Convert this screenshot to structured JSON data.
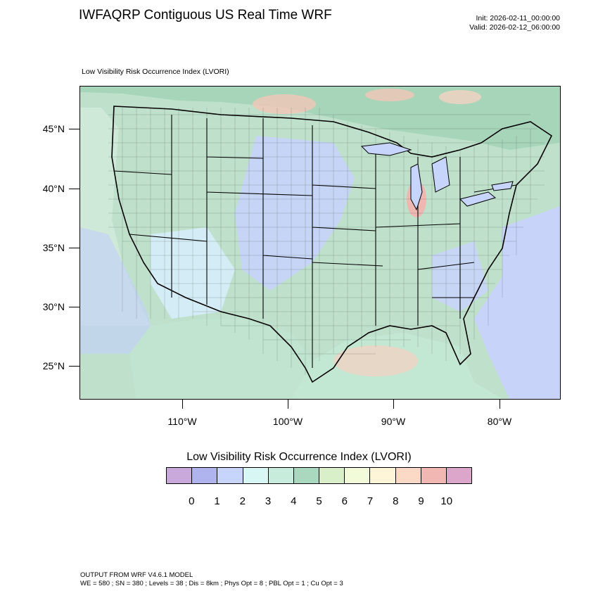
{
  "header": {
    "title": "IWFAQRP Contiguous US Real Time WRF",
    "init": "Init: 2026-02-11_00:00:00",
    "valid": "Valid: 2026-02-12_06:00:00"
  },
  "map": {
    "subtitle": "Low Visibility Risk Occurrence Index   (LVORI)",
    "lat_labels": [
      "45°N",
      "40°N",
      "35°N",
      "30°N",
      "25°N"
    ],
    "lon_labels": [
      "110°W",
      "100°W",
      "90°W",
      "80°W"
    ],
    "colors": {
      "border": "#000000",
      "ocean_low": "#c6d3fb",
      "land_mid": "#b9dfc8"
    }
  },
  "legend": {
    "title": "Low Visibility Risk Occurrence Index  (LVORI)",
    "labels": [
      "0",
      "1",
      "2",
      "3",
      "4",
      "5",
      "6",
      "7",
      "8",
      "9",
      "10"
    ],
    "colors": [
      "#c9a8dc",
      "#b0b4ee",
      "#c7d4fb",
      "#d8f6f3",
      "#c8ecdb",
      "#aad8bf",
      "#d8efc9",
      "#f1fbda",
      "#fef5d9",
      "#fcd8c7",
      "#f0b7b3",
      "#dba6c9"
    ]
  },
  "footer": {
    "line1": "OUTPUT FROM WRF V4.6.1 MODEL",
    "line2": "WE = 580 ; SN = 380 ; Levels = 38 ; Dis = 8km ; Phys Opt = 8 ; PBL Opt = 1 ; Cu Opt = 3"
  }
}
